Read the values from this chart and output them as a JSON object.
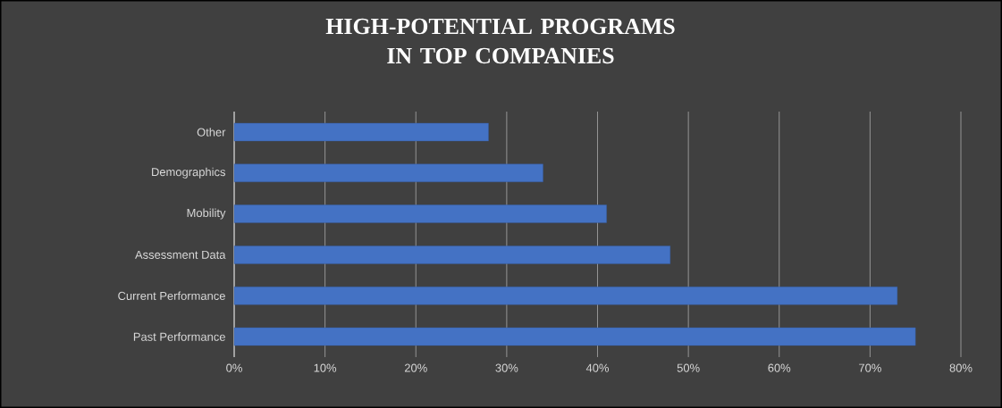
{
  "chart_data": {
    "type": "bar",
    "orientation": "horizontal",
    "title": "HIGH-POTENTIAL PROGRAMS IN TOP COMPANIES",
    "categories": [
      "Other",
      "Demographics",
      "Mobility",
      "Assessment Data",
      "Current Performance",
      "Past Performance"
    ],
    "values": [
      28,
      34,
      41,
      48,
      73,
      75
    ],
    "color": "#4472c4",
    "xlim": [
      0,
      80
    ],
    "xticks": [
      {
        "value": 0,
        "label": "0%"
      },
      {
        "value": 10,
        "label": "10%"
      },
      {
        "value": 20,
        "label": "20%"
      },
      {
        "value": 30,
        "label": "30%"
      },
      {
        "value": 40,
        "label": "40%"
      },
      {
        "value": 50,
        "label": "50%"
      },
      {
        "value": 60,
        "label": "60%"
      },
      {
        "value": 70,
        "label": "70%"
      },
      {
        "value": 80,
        "label": "80%"
      }
    ],
    "grid": "x"
  }
}
